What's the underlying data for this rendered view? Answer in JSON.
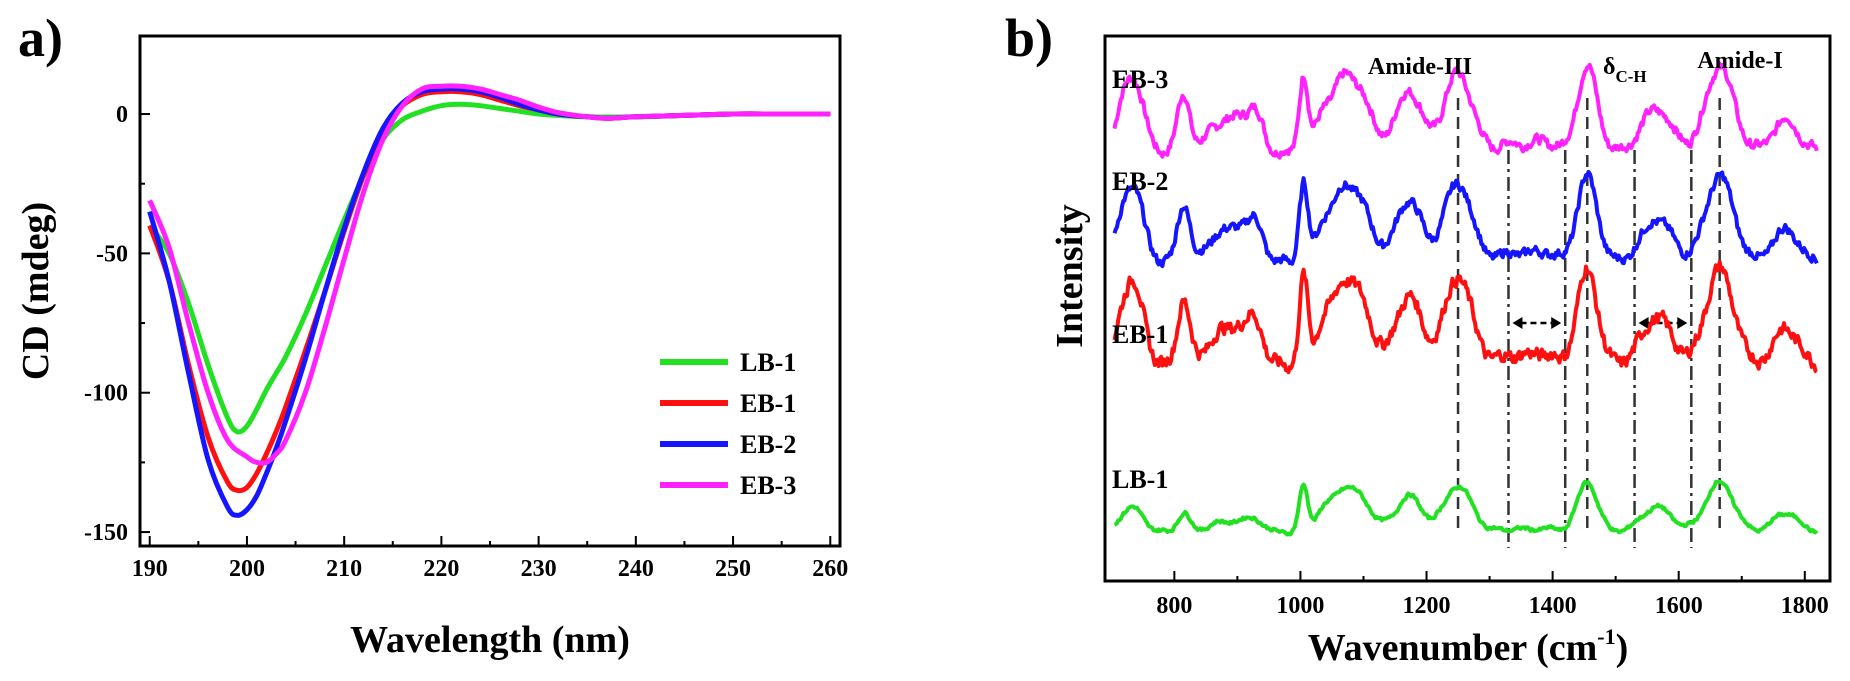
{
  "chart_data": [
    {
      "panel": "a)",
      "type": "line",
      "xlabel": "Wavelength (nm)",
      "ylabel": "CD (mdeg)",
      "xlim": [
        189,
        261
      ],
      "ylim": [
        -155,
        28
      ],
      "xticks": [
        190,
        200,
        210,
        220,
        230,
        240,
        250,
        260
      ],
      "yticks": [
        0,
        -50,
        -100,
        -150
      ],
      "legend_position": "bottom-right",
      "series": [
        {
          "name": "LB-1",
          "color": "#22e022",
          "x": [
            190,
            192,
            194,
            196,
            198,
            199,
            200,
            201,
            202,
            203,
            204,
            206,
            208,
            210,
            212,
            214,
            216,
            218,
            220,
            222,
            224,
            226,
            228,
            230,
            232,
            235,
            240,
            245,
            250,
            255,
            260
          ],
          "y": [
            -40,
            -50,
            -68,
            -90,
            -109,
            -114,
            -112,
            -106,
            -99,
            -93,
            -87,
            -72,
            -55,
            -38,
            -22,
            -9,
            -2,
            1,
            3,
            3.5,
            3,
            2,
            1,
            0,
            -0.5,
            -1,
            -1,
            -0.5,
            0,
            0,
            0
          ]
        },
        {
          "name": "EB-1",
          "color": "#ff1010",
          "x": [
            190,
            192,
            194,
            196,
            198,
            199,
            200,
            201,
            202,
            203,
            204,
            206,
            208,
            210,
            212,
            214,
            216,
            218,
            220,
            222,
            224,
            226,
            228,
            230,
            232,
            235,
            237,
            240,
            245,
            250,
            255,
            260
          ],
          "y": [
            -40,
            -60,
            -90,
            -116,
            -132,
            -135,
            -134,
            -129,
            -122,
            -114,
            -105,
            -85,
            -64,
            -42,
            -22,
            -6,
            3,
            7,
            8,
            8,
            7,
            5,
            3,
            1.5,
            0,
            -1,
            -1.5,
            -1,
            -0.5,
            0,
            0,
            0
          ]
        },
        {
          "name": "EB-2",
          "color": "#1515ff",
          "x": [
            190,
            192,
            194,
            196,
            198,
            199,
            200,
            201,
            202,
            203,
            204,
            206,
            208,
            210,
            212,
            214,
            216,
            218,
            220,
            222,
            224,
            226,
            228,
            230,
            232,
            235,
            237,
            240,
            245,
            250,
            255,
            260
          ],
          "y": [
            -35,
            -60,
            -93,
            -124,
            -141,
            -144,
            -142,
            -137,
            -129,
            -120,
            -110,
            -88,
            -64,
            -41,
            -21,
            -5,
            4,
            8,
            9,
            9,
            8,
            6,
            3.5,
            1.5,
            0,
            -1,
            -1.5,
            -1,
            -0.5,
            0,
            0,
            0
          ]
        },
        {
          "name": "EB-3",
          "color": "#ff22ff",
          "x": [
            190,
            192,
            194,
            196,
            198,
            200,
            201,
            202,
            203,
            204,
            206,
            208,
            210,
            212,
            214,
            216,
            218,
            220,
            222,
            224,
            226,
            228,
            230,
            232,
            235,
            237,
            240,
            245,
            250,
            255,
            260
          ],
          "y": [
            -31,
            -48,
            -75,
            -100,
            -117,
            -123,
            -125,
            -125,
            -122,
            -117,
            -100,
            -77,
            -52,
            -28,
            -9,
            3,
            9,
            10,
            10,
            9,
            7,
            5,
            2.5,
            0.5,
            -1,
            -1.5,
            -1,
            -0.5,
            0,
            0,
            0
          ]
        }
      ]
    },
    {
      "panel": "b)",
      "type": "line",
      "xlabel": "Wavenumber (cm",
      "xlabel_sup": "-1",
      "xlabel_end": ")",
      "ylabel": "Intensity",
      "xlim": [
        690,
        1840
      ],
      "xticks": [
        800,
        1000,
        1200,
        1400,
        1600,
        1800
      ],
      "annotations": {
        "amide_iii": "Amide-III",
        "delta": "δ",
        "delta_sub": "C-H",
        "amide_i": "Amide-I"
      },
      "dashed_lines": [
        1250,
        1455,
        1665
      ],
      "dashdot_lines": [
        1330,
        1420,
        1530,
        1620
      ],
      "arrow_ranges": [
        [
          1330,
          1420
        ],
        [
          1530,
          1620
        ]
      ],
      "peaks": [
        {
          "x": 715,
          "h": 0.2,
          "w": 10
        },
        {
          "x": 735,
          "h": 0.85,
          "w": 16
        },
        {
          "x": 815,
          "h": 0.68,
          "w": 10
        },
        {
          "x": 870,
          "h": 0.32,
          "w": 18
        },
        {
          "x": 905,
          "h": 0.35,
          "w": 15
        },
        {
          "x": 930,
          "h": 0.4,
          "w": 12
        },
        {
          "x": 1005,
          "h": 0.9,
          "w": 7
        },
        {
          "x": 1035,
          "h": 0.38,
          "w": 12
        },
        {
          "x": 1062,
          "h": 0.48,
          "w": 15
        },
        {
          "x": 1090,
          "h": 0.72,
          "w": 22
        },
        {
          "x": 1172,
          "h": 0.72,
          "w": 20
        },
        {
          "x": 1250,
          "h": 0.92,
          "w": 22
        },
        {
          "x": 1335,
          "h": 0.1,
          "w": 20
        },
        {
          "x": 1385,
          "h": 0.12,
          "w": 20
        },
        {
          "x": 1455,
          "h": 1.0,
          "w": 16
        },
        {
          "x": 1565,
          "h": 0.5,
          "w": 24
        },
        {
          "x": 1665,
          "h": 1.0,
          "w": 22
        },
        {
          "x": 1770,
          "h": 0.38,
          "w": 20
        }
      ],
      "series": [
        {
          "name": "EB-3",
          "color": "#ff22ff",
          "amp": 86,
          "noise": 0.08
        },
        {
          "name": "EB-2",
          "color": "#1515ff",
          "amp": 86,
          "noise": 0.08
        },
        {
          "name": "EB-1",
          "color": "#ff1010",
          "amp": 96,
          "noise": 0.1
        },
        {
          "name": "LB-1",
          "color": "#22e022",
          "amp": 50,
          "noise": 0.05
        }
      ]
    }
  ]
}
